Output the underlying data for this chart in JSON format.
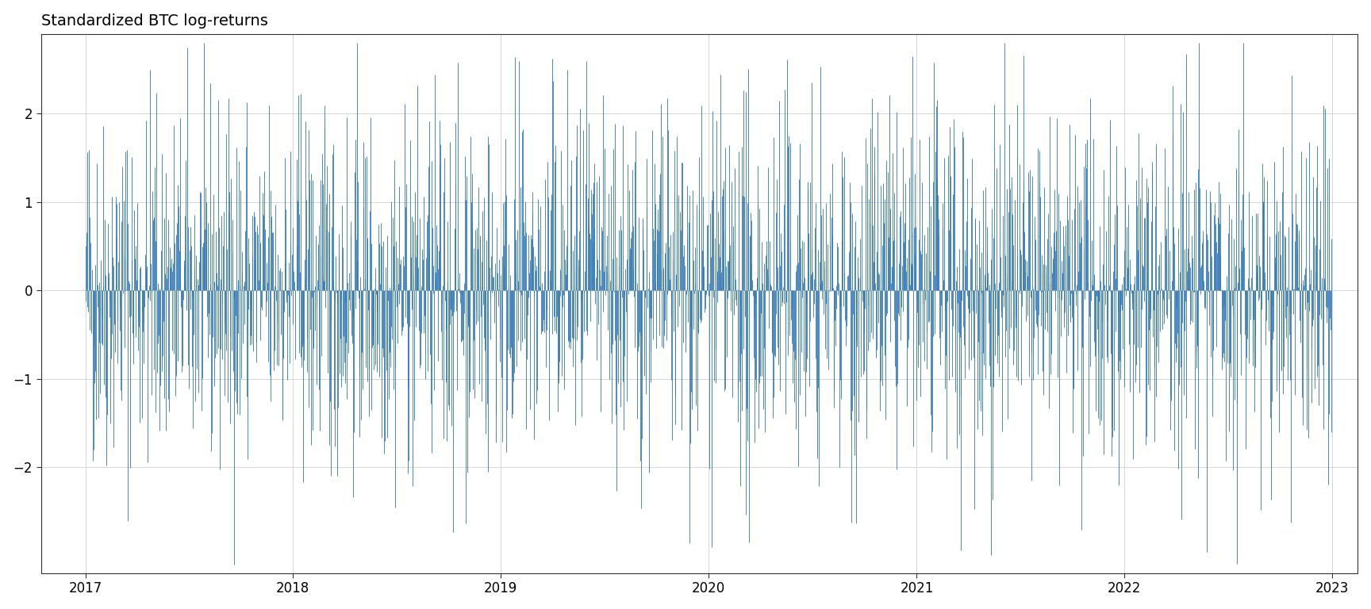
{
  "title": "Standardized BTC log-returns",
  "title_fontsize": 14,
  "line_color": "#2e75b6",
  "background_color": "#ffffff",
  "plot_bg_color": "#ffffff",
  "grid_color": "#d0d0d0",
  "ylim": [
    -3.2,
    2.9
  ],
  "yticks": [
    -2,
    -1,
    0,
    1,
    2
  ],
  "xtick_labels": [
    "2017",
    "2018",
    "2019",
    "2020",
    "2021",
    "2022",
    "2023"
  ],
  "seed": 42,
  "bar_width": 1.0,
  "line_width": 0.6
}
